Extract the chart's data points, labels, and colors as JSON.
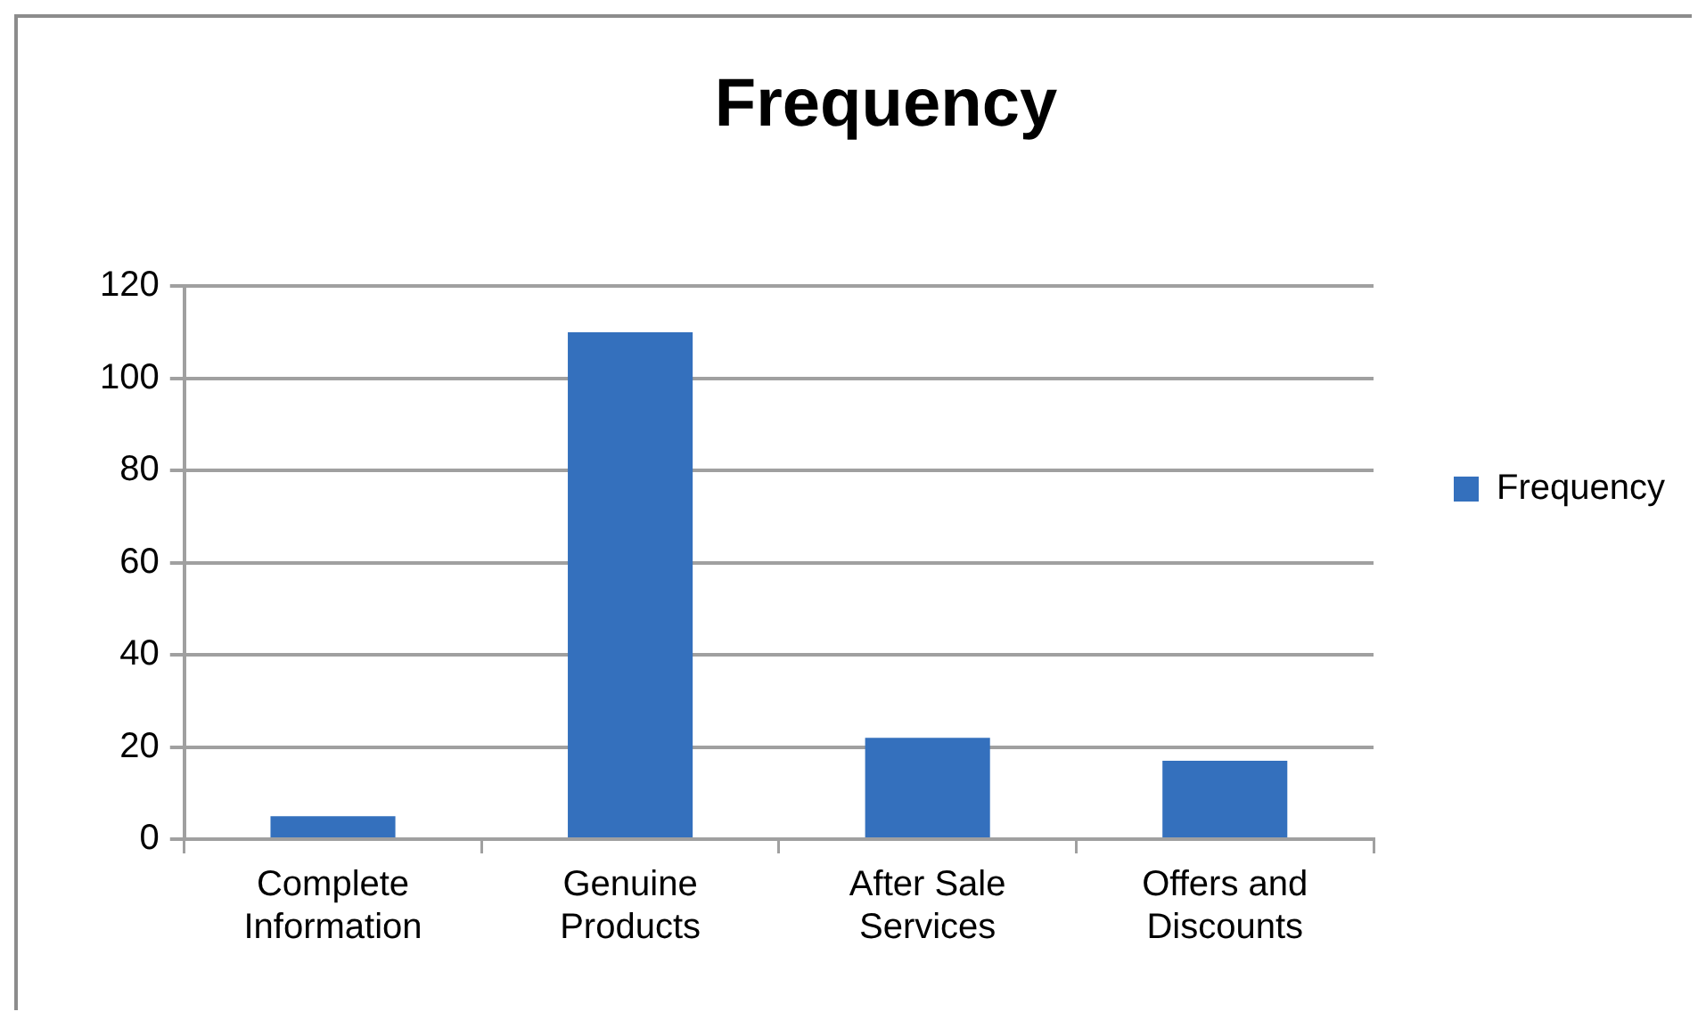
{
  "chart_data": {
    "type": "bar",
    "title": "Frequency",
    "categories": [
      "Complete Information",
      "Genuine Products",
      "After Sale Services",
      "Offers and Discounts"
    ],
    "series": [
      {
        "name": "Frequency",
        "color": "#3470bd",
        "values": [
          5,
          110,
          22,
          17
        ]
      }
    ],
    "ylim": [
      0,
      120
    ],
    "yticks": [
      0,
      20,
      40,
      60,
      80,
      100,
      120
    ],
    "grid": "y",
    "legend": "right"
  }
}
